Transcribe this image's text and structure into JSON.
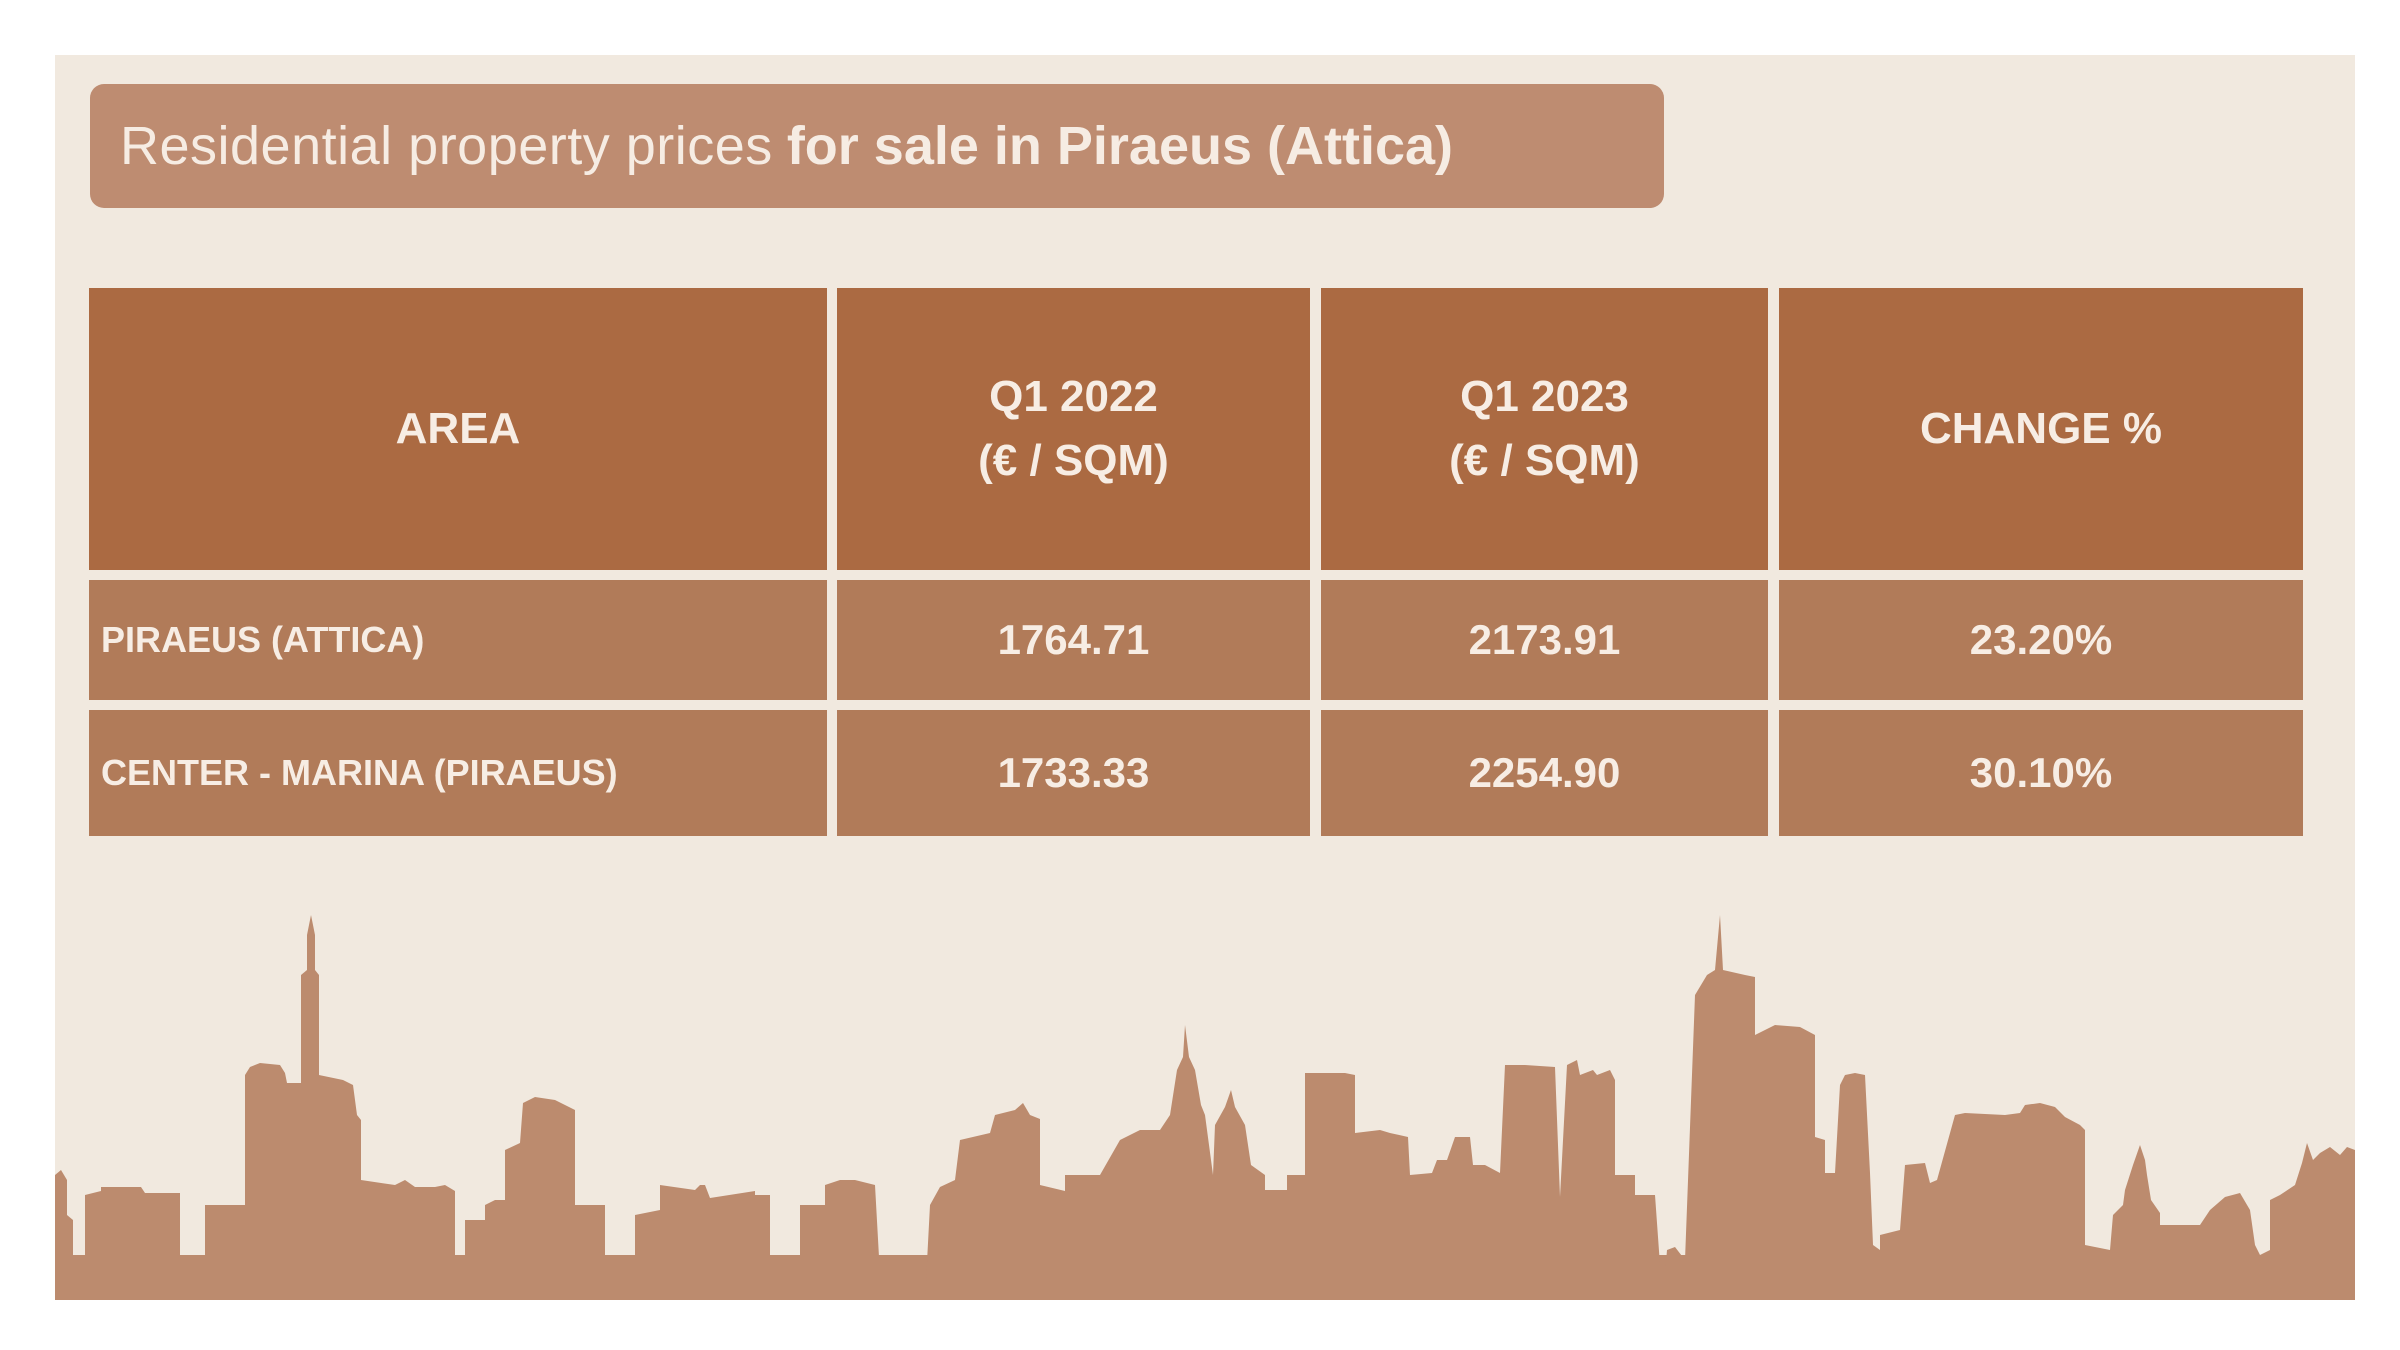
{
  "title": {
    "light": "Residential property prices",
    "bold": "for sale in Piraeus (Attica)"
  },
  "table": {
    "headers": [
      {
        "line1": "AREA",
        "line2": ""
      },
      {
        "line1": "Q1 2022",
        "line2": "(€ / SQM)"
      },
      {
        "line1": "Q1 2023",
        "line2": "(€ / SQM)"
      },
      {
        "line1": "CHANGE %",
        "line2": ""
      }
    ],
    "rows": [
      [
        "PIRAEUS (ATTICA)",
        "1764.71",
        "2173.91",
        "23.20%"
      ],
      [
        "CENTER - MARINA (PIRAEUS)",
        "1733.33",
        "2254.90",
        "30.10%"
      ]
    ]
  },
  "colors": {
    "background": "#f1e9df",
    "title_bar": "#be8c71",
    "header_cell": "#ab6a42",
    "row_cell": "#b17b59",
    "skyline": "#bc8b6e",
    "text": "#f7ede4"
  }
}
